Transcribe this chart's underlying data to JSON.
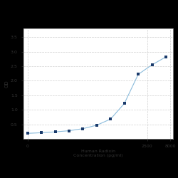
{
  "x": [
    6.25,
    12.5,
    25,
    50,
    100,
    200,
    400,
    800,
    1600,
    3200,
    6400
  ],
  "y": [
    0.19,
    0.21,
    0.24,
    0.28,
    0.35,
    0.47,
    0.68,
    1.22,
    2.22,
    2.55,
    2.82
  ],
  "xlabel_line1": "Human Radixin",
  "xlabel_line2": "Concentration (pg/ml)",
  "ylabel": "OD",
  "xlim_log": [
    5,
    9000
  ],
  "ylim": [
    0.0,
    3.8
  ],
  "yticks": [
    0.5,
    1.0,
    1.5,
    2.0,
    2.5,
    3.0,
    3.5
  ],
  "xtick_positions": [
    6.25,
    2500,
    8000
  ],
  "xtick_labels": [
    "0",
    "2500",
    "8000"
  ],
  "grid_color": "#d0d0d0",
  "line_color": "#8bbcdc",
  "marker_color": "#1a3a6b",
  "bg_color": "#ffffff",
  "fig_bg_color": "#000000",
  "spine_color": "#aaaaaa"
}
